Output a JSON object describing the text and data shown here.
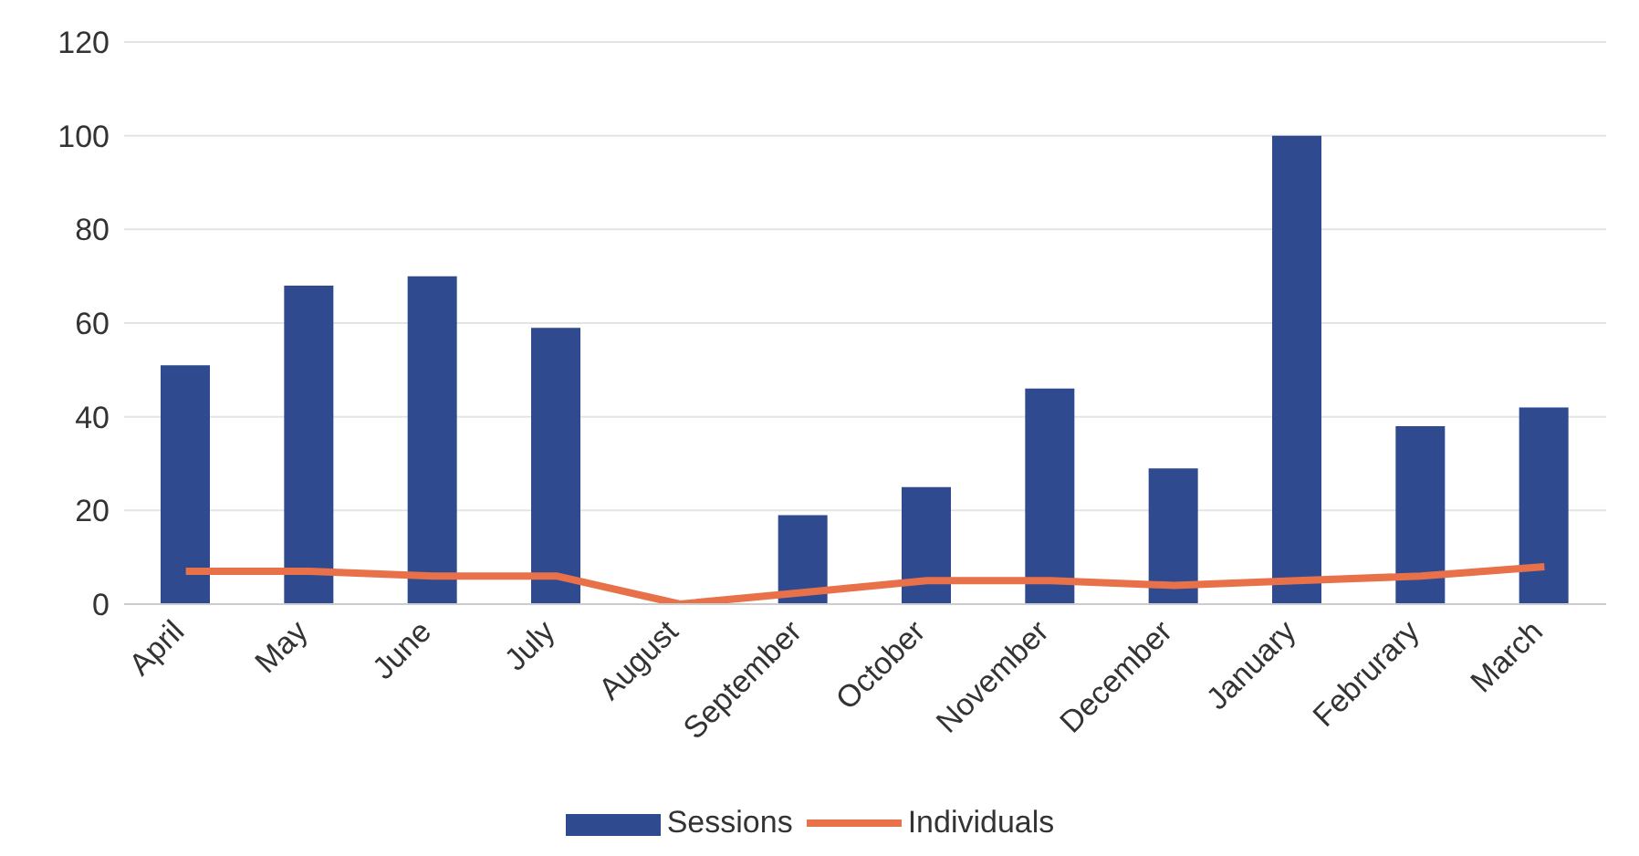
{
  "chart_data": {
    "type": "bar",
    "categories": [
      "April",
      "May",
      "June",
      "July",
      "August",
      "September",
      "October",
      "November",
      "December",
      "January",
      "Februrary",
      "March"
    ],
    "series": [
      {
        "name": "Sessions",
        "color": "#2f4a8f",
        "values": [
          51,
          68,
          70,
          59,
          0,
          19,
          25,
          46,
          29,
          100,
          38,
          42
        ]
      },
      {
        "name": "Individuals",
        "type": "line",
        "color": "#e8714a",
        "values": [
          7,
          7,
          6,
          6,
          0,
          2.5,
          5,
          5,
          4,
          5,
          6,
          8
        ]
      }
    ],
    "ylim": [
      0,
      120
    ],
    "yticks": [
      0,
      20,
      40,
      60,
      80,
      100,
      120
    ],
    "grid": "y",
    "legend": "bottom",
    "marker": "none"
  }
}
